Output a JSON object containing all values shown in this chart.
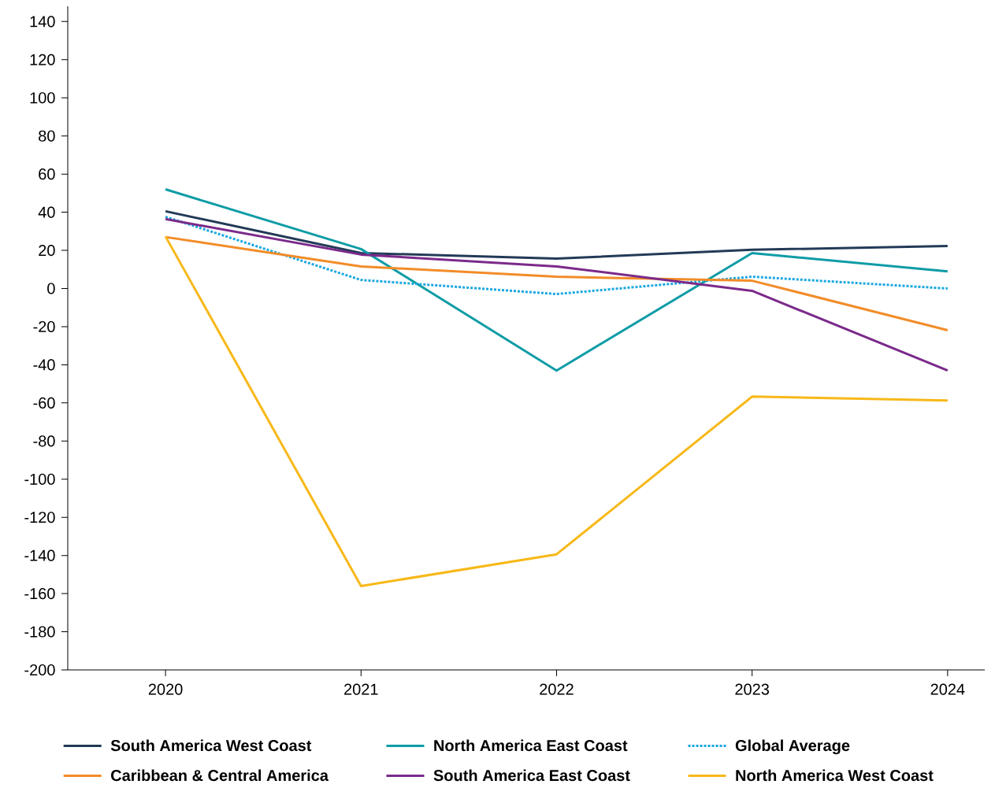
{
  "chart_data": {
    "type": "line",
    "categories": [
      "2020",
      "2021",
      "2022",
      "2023",
      "2024"
    ],
    "series": [
      {
        "name": "South America West Coast",
        "color": "#233a57",
        "values": [
          40.5,
          18.6,
          15.7,
          20.3,
          22.3
        ]
      },
      {
        "name": "North America East Coast",
        "color": "#0e9ca6",
        "values": [
          52,
          20.7,
          -43,
          18.6,
          9
        ]
      },
      {
        "name": "Global Average",
        "color": "#1aa7e0",
        "line_style": "dotted",
        "values": [
          37.6,
          4.5,
          -2.9,
          6.2,
          0
        ]
      },
      {
        "name": "Caribbean & Central America",
        "color": "#f28c28",
        "values": [
          27,
          11.6,
          6.2,
          4.1,
          -21.9
        ]
      },
      {
        "name": "South America East Coast",
        "color": "#7b2a8a",
        "values": [
          36.4,
          17.8,
          11.6,
          -1.2,
          -43
        ]
      },
      {
        "name": "North America West Coast",
        "color": "#f7b818",
        "values": [
          27.3,
          -156,
          -139.4,
          -56.7,
          -58.7
        ]
      }
    ],
    "ylim": [
      -200,
      148
    ],
    "yticks": [
      -200,
      -180,
      -160,
      -140,
      -120,
      -100,
      -80,
      -60,
      -40,
      -20,
      0,
      20,
      40,
      60,
      80,
      100,
      120,
      140
    ],
    "legend": "bottom",
    "line_style": "solid"
  }
}
